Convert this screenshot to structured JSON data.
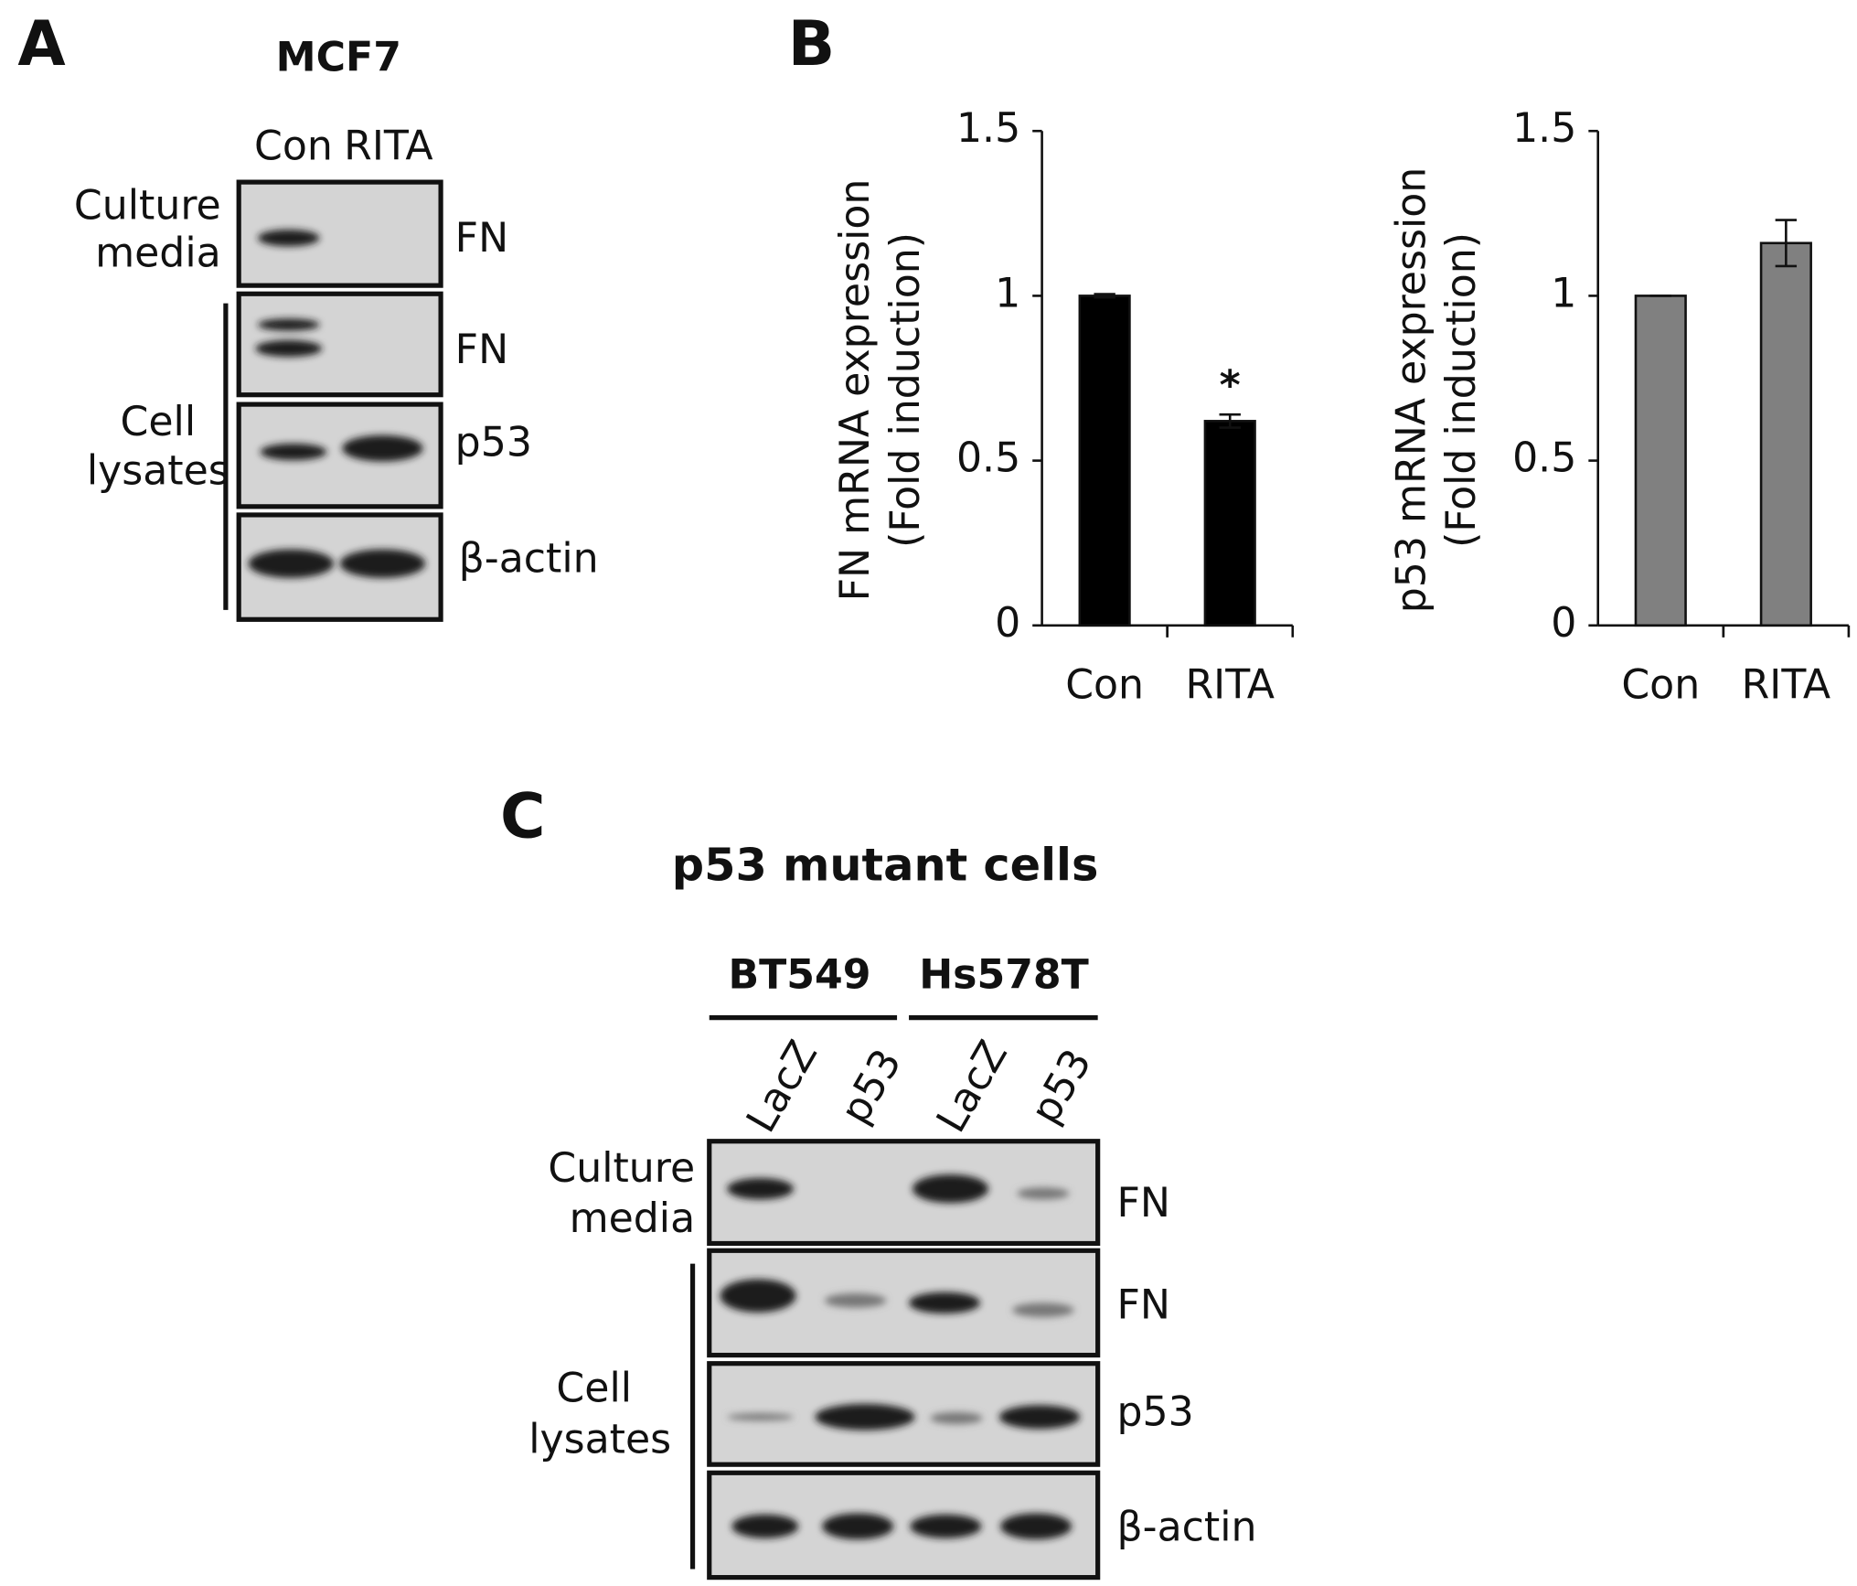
{
  "panels": {
    "A": {
      "label": "A",
      "title": "MCF7",
      "lanes": [
        "Con",
        "RITA"
      ],
      "row_groups": [
        [
          "Culture",
          "media"
        ],
        [
          "Cell",
          "lysates"
        ]
      ],
      "bands": [
        "FN",
        "FN",
        "p53",
        "β-actin"
      ]
    },
    "B": {
      "label": "B"
    },
    "C": {
      "label": "C",
      "title": "p53 mutant cells",
      "groups": [
        "BT549",
        "Hs578T"
      ],
      "lanes": [
        "LacZ",
        "p53",
        "LacZ",
        "p53"
      ],
      "row_groups": [
        [
          "Culture",
          "media"
        ],
        [
          "Cell",
          "lysates"
        ]
      ],
      "bands": [
        "FN",
        "FN",
        "p53",
        "β-actin"
      ]
    }
  },
  "chart_data": [
    {
      "type": "bar",
      "ylabel": [
        "FN mRNA expression",
        "(Fold induction)"
      ],
      "categories": [
        "Con",
        "RITA"
      ],
      "values": [
        1.0,
        0.62
      ],
      "errors": [
        0.005,
        0.02
      ],
      "significance": [
        null,
        "*"
      ],
      "color": "#000000",
      "ylim": [
        0,
        1.5
      ],
      "yticks": [
        0,
        0.5,
        1,
        1.5
      ]
    },
    {
      "type": "bar",
      "ylabel": [
        "p53 mRNA expression",
        "(Fold induction)"
      ],
      "categories": [
        "Con",
        "RITA"
      ],
      "values": [
        1.0,
        1.16
      ],
      "errors": [
        0,
        0.07
      ],
      "significance": [
        null,
        null
      ],
      "color": "#808080",
      "ylim": [
        0,
        1.5
      ],
      "yticks": [
        0,
        0.5,
        1,
        1.5
      ]
    }
  ]
}
